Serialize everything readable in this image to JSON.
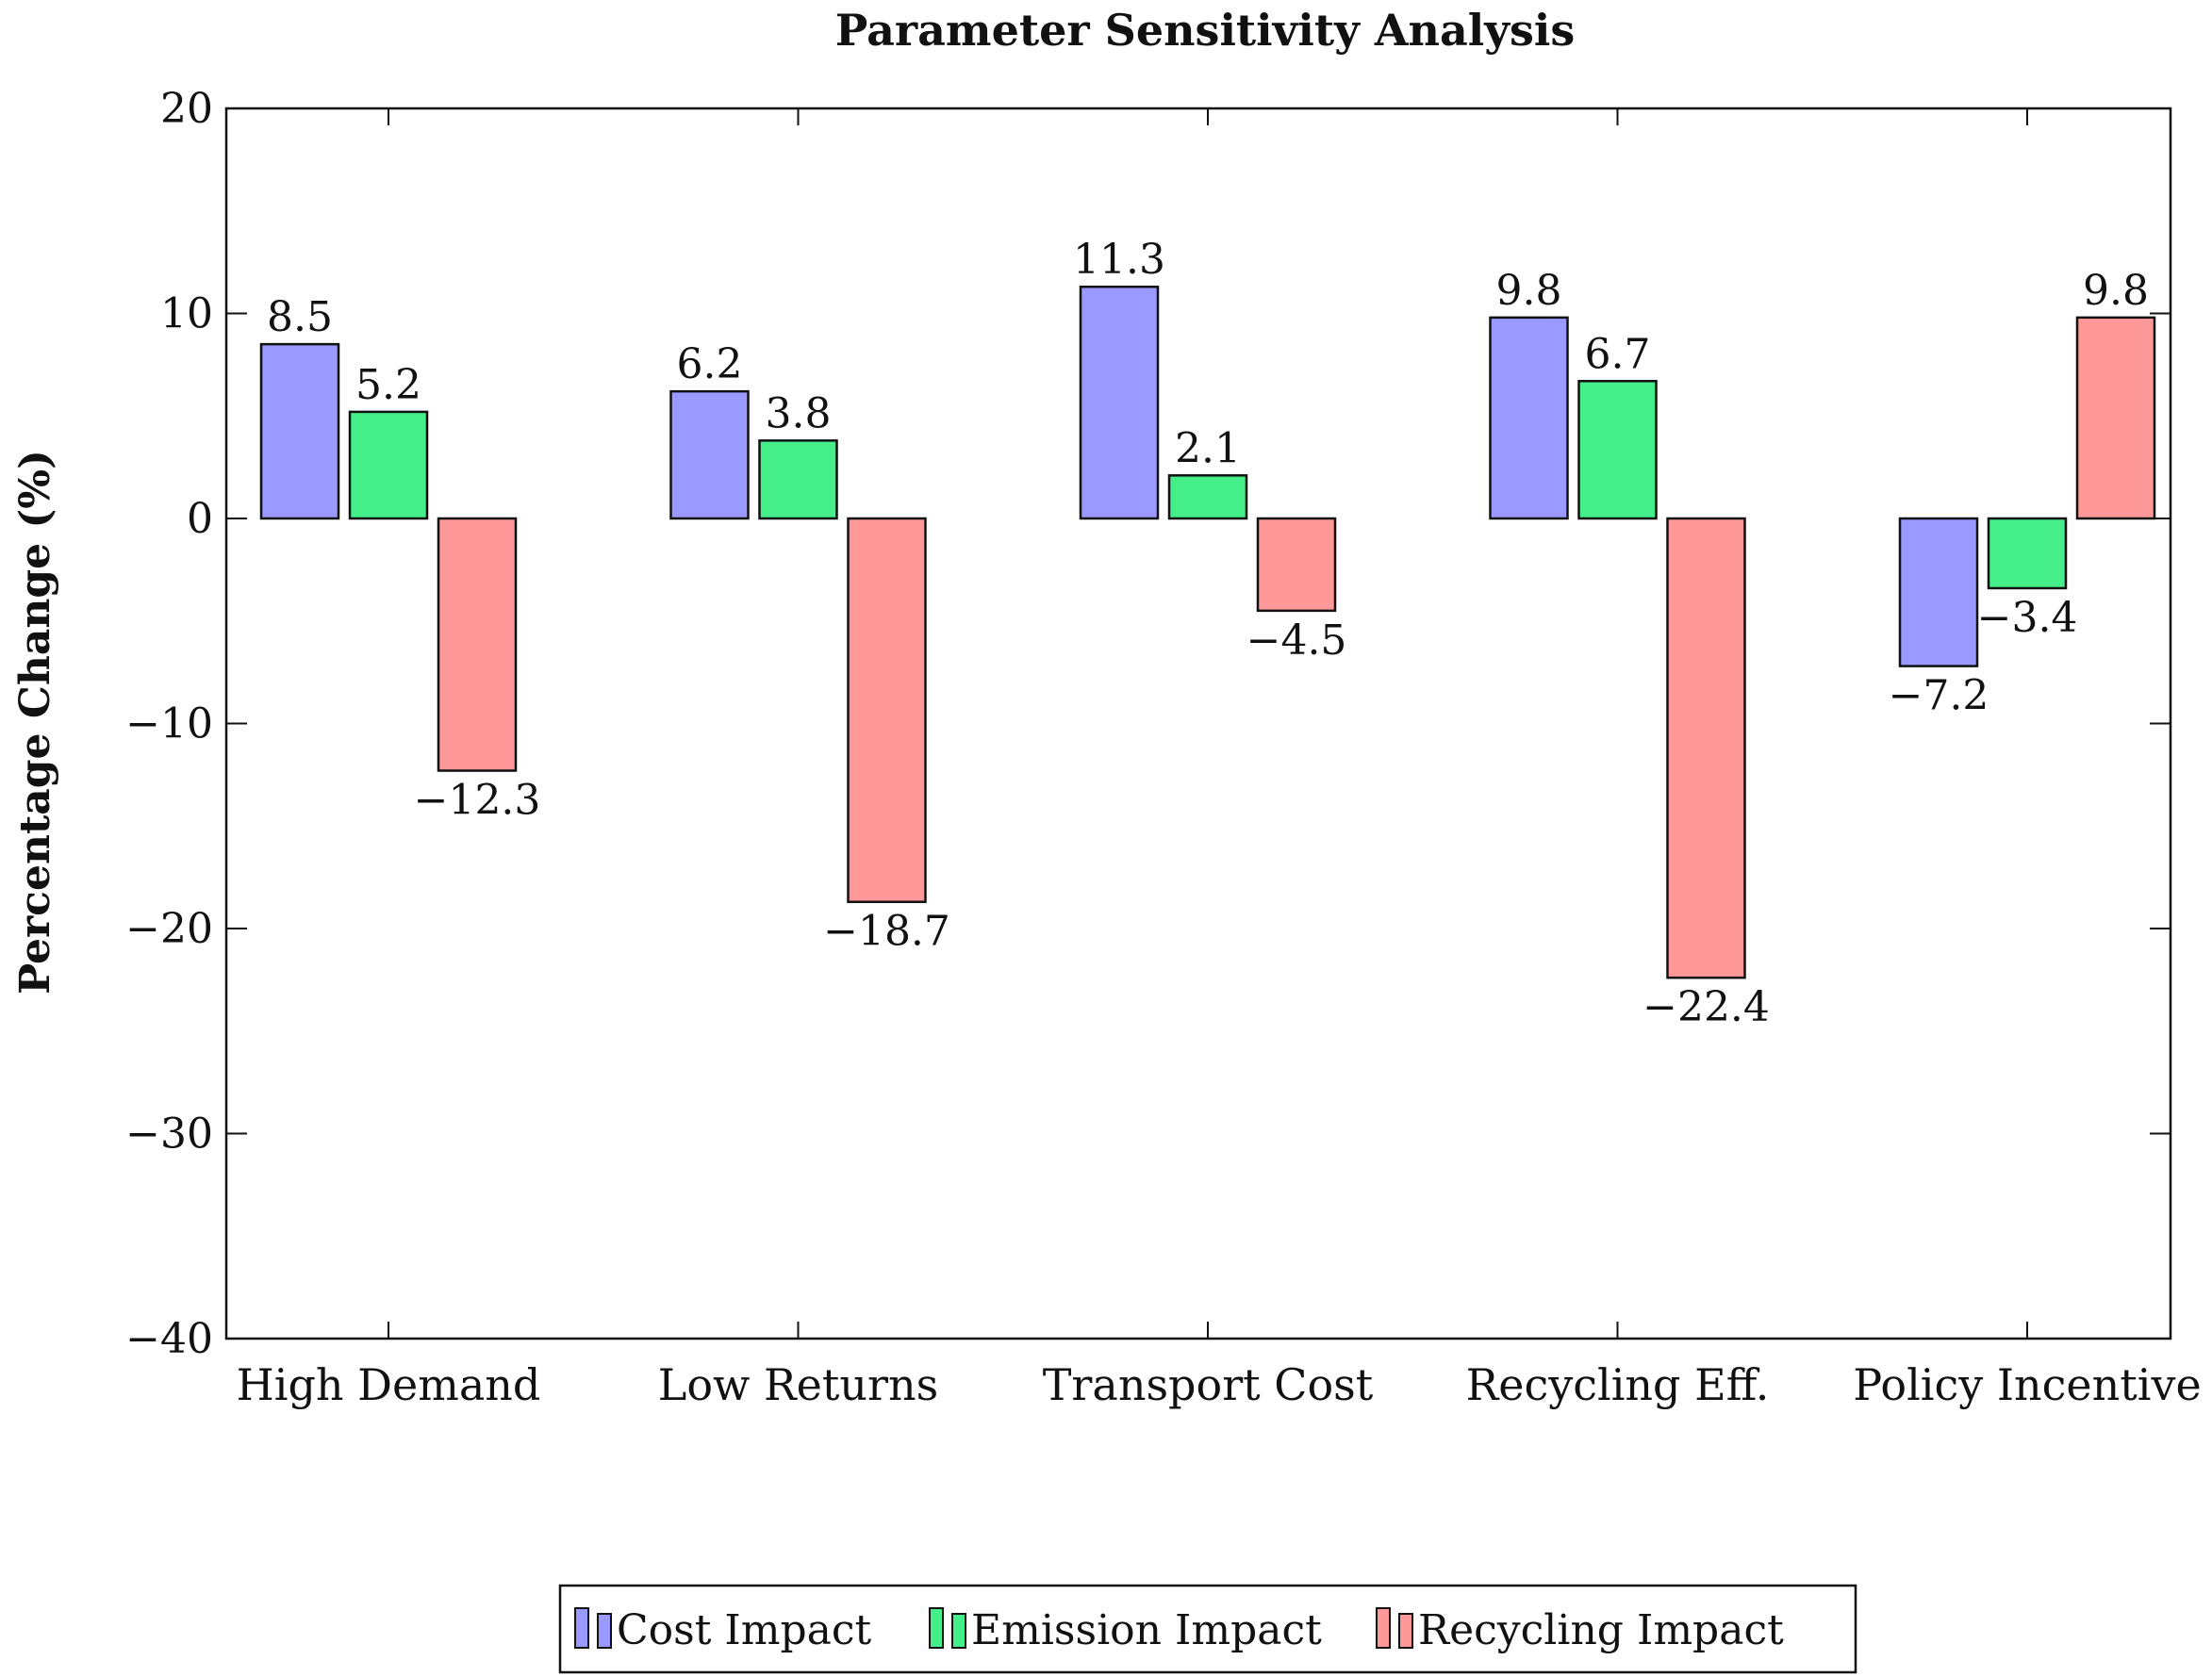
{
  "chart_data": {
    "type": "bar",
    "title": "Parameter Sensitivity Analysis",
    "xlabel": "",
    "ylabel": "Percentage Change (%)",
    "ylim": [
      -40,
      20
    ],
    "yticks": [
      20,
      10,
      0,
      -10,
      -20,
      -30,
      -40
    ],
    "ytick_labels": [
      "20",
      "10",
      "0",
      "−10",
      "−20",
      "−30",
      "−40"
    ],
    "categories": [
      "High Demand",
      "Low Returns",
      "Transport Cost",
      "Recycling Eff.",
      "Policy Incentive"
    ],
    "series": [
      {
        "name": "Cost Impact",
        "color": "#9999ff",
        "values": [
          8.5,
          6.2,
          11.3,
          9.8,
          -7.2
        ],
        "labels": [
          "8.5",
          "6.2",
          "11.3",
          "9.8",
          "−7.2"
        ]
      },
      {
        "name": "Emission Impact",
        "color": "#44ee88",
        "values": [
          5.2,
          3.8,
          2.1,
          6.7,
          -3.4
        ],
        "labels": [
          "5.2",
          "3.8",
          "2.1",
          "6.7",
          "−3.4"
        ]
      },
      {
        "name": "Recycling Impact",
        "color": "#ff9999",
        "values": [
          -12.3,
          -18.7,
          -4.5,
          -22.4,
          9.8
        ],
        "labels": [
          "−12.3",
          "−18.7",
          "−4.5",
          "−22.4",
          "9.8"
        ]
      }
    ],
    "grid": false,
    "legend": "bottom-center"
  }
}
